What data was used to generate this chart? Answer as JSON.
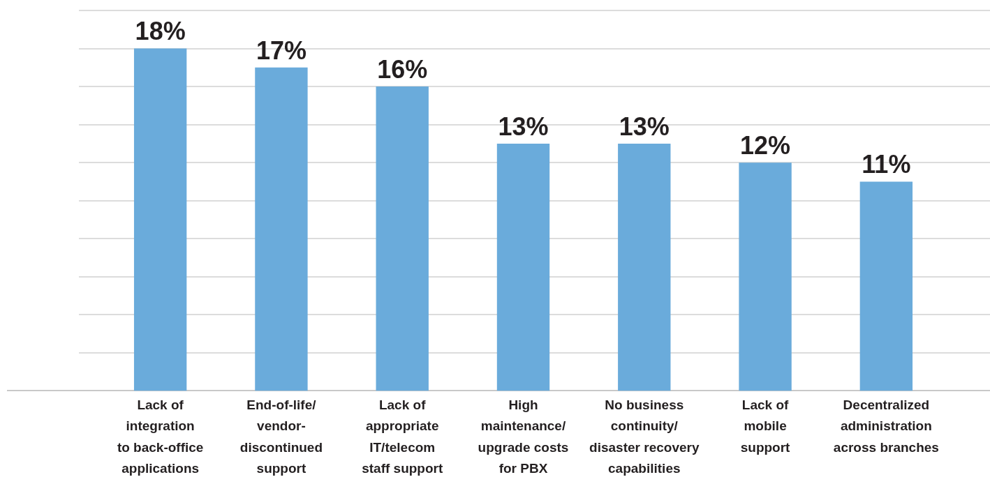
{
  "chart_data": {
    "type": "bar",
    "categories": [
      "Lack of\nintegration\nto back-office\napplications",
      "End-of-life/\nvendor-\ndiscontinued\nsupport",
      "Lack of\nappropriate\nIT/telecom\nstaff support",
      "High\nmaintenance/\nupgrade costs\nfor PBX",
      "No business\ncontinuity/\ndisaster recovery\ncapabilities",
      "Lack of\nmobile\nsupport",
      "Decentralized\nadministration\nacross branches"
    ],
    "values": [
      18,
      17,
      16,
      13,
      13,
      12,
      11
    ],
    "value_labels": [
      "18%",
      "17%",
      "16%",
      "13%",
      "13%",
      "12%",
      "11%"
    ],
    "color": "#6aabdb",
    "ylim": [
      0,
      20
    ],
    "yticks": [
      {
        "value": 0,
        "label": null
      },
      {
        "value": 2,
        "label": null
      },
      {
        "value": 4,
        "label": null
      },
      {
        "value": 6,
        "label": null
      },
      {
        "value": 8,
        "label": null
      },
      {
        "value": 10,
        "label": null
      },
      {
        "value": 12,
        "label": null
      },
      {
        "value": 14,
        "label": null
      },
      {
        "value": 16,
        "label": null
      },
      {
        "value": 18,
        "label": null
      },
      {
        "value": 20,
        "label": null
      }
    ],
    "tick_labels": "x",
    "grid": "y",
    "legend": false
  }
}
